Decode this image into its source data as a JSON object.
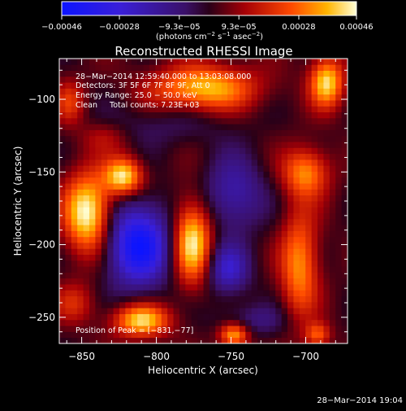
{
  "chart_data": {
    "type": "heatmap",
    "title": "Reconstructed RHESSI Image",
    "xlabel": "Heliocentric X (arcsec)",
    "ylabel": "Heliocentric Y (arcsec)",
    "xlim": [
      -865,
      -672
    ],
    "ylim": [
      -268,
      -72
    ],
    "xticks": [
      -850,
      -800,
      -750,
      -700
    ],
    "yticks": [
      -100,
      -150,
      -200,
      -250
    ],
    "colorbar": {
      "ticks": [
        -0.00046,
        -0.00028,
        -9.3e-05,
        9.3e-05,
        0.00028,
        0.00046
      ],
      "tick_labels": [
        "−0.00046",
        "−0.00028",
        "−9.3e−05",
        "9.3e−05",
        "0.00028",
        "0.00046"
      ],
      "range": [
        -0.00046,
        0.00046
      ],
      "units_main": "(photons cm",
      "units_exp1": "−2",
      "units_mid": " s",
      "units_exp2": "−1",
      "units_mid2": " asec",
      "units_exp3": "−2",
      "units_end": ")"
    },
    "annotations": {
      "time_range": "28−Mar−2014 12:59:40.000 to 13:03:08.000",
      "detectors": "Detectors: 3F 5F 6F 7F 8F 9F, Att 0",
      "energy": "Energy Range: 25.0 − 50.0 keV",
      "clean": "Clean     Total counts: 7.23E+03",
      "peak": "Position of Peak = [−831,−77]"
    },
    "footer_timestamp": "28−Mar−2014 19:04",
    "sources": [
      {
        "x": -846,
        "y": -178,
        "sx": 11,
        "sy": 19,
        "a": 0.00046
      },
      {
        "x": -822,
        "y": -153,
        "sx": 9,
        "sy": 9,
        "a": 0.00042
      },
      {
        "x": -776,
        "y": -198,
        "sx": 9,
        "sy": 20,
        "a": 0.00043
      },
      {
        "x": -810,
        "y": -252,
        "sx": 13,
        "sy": 8,
        "a": 0.0004
      },
      {
        "x": -768,
        "y": -92,
        "sx": 24,
        "sy": 11,
        "a": 0.00037
      },
      {
        "x": -700,
        "y": -150,
        "sx": 11,
        "sy": 12,
        "a": 0.0003
      },
      {
        "x": -704,
        "y": -214,
        "sx": 9,
        "sy": 26,
        "a": 0.00031
      },
      {
        "x": -686,
        "y": -88,
        "sx": 8,
        "sy": 12,
        "a": 0.0004
      },
      {
        "x": -858,
        "y": -102,
        "sx": 7,
        "sy": 11,
        "a": 0.00018
      },
      {
        "x": -748,
        "y": -262,
        "sx": 7,
        "sy": 6,
        "a": 0.00036
      },
      {
        "x": -692,
        "y": -262,
        "sx": 6,
        "sy": 6,
        "a": 0.00024
      },
      {
        "x": -812,
        "y": -200,
        "sx": 15,
        "sy": 20,
        "a": -0.00046
      },
      {
        "x": -752,
        "y": -217,
        "sx": 10,
        "sy": 12,
        "a": -0.00026
      },
      {
        "x": -748,
        "y": -165,
        "sx": 14,
        "sy": 18,
        "a": -0.00022
      },
      {
        "x": -735,
        "y": -252,
        "sx": 18,
        "sy": 8,
        "a": -0.00012
      },
      {
        "x": -800,
        "y": -118,
        "sx": 34,
        "sy": 10,
        "a": -8e-05
      },
      {
        "x": -835,
        "y": -125,
        "sx": 12,
        "sy": 8,
        "a": 0.00012
      },
      {
        "x": -855,
        "y": -240,
        "sx": 10,
        "sy": 10,
        "a": 0.00015
      }
    ],
    "background": 2e-05
  }
}
